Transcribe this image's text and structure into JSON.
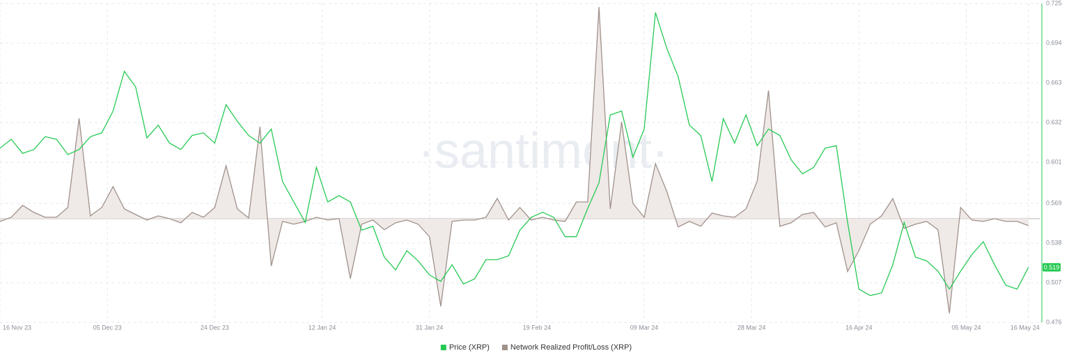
{
  "chart_data": {
    "type": "line",
    "watermark": "·santiment·",
    "x": [
      "2023-11-16",
      "2023-11-18",
      "2023-11-20",
      "2023-11-22",
      "2023-11-24",
      "2023-11-26",
      "2023-11-28",
      "2023-11-30",
      "2023-12-02",
      "2023-12-04",
      "2023-12-06",
      "2023-12-08",
      "2023-12-10",
      "2023-12-12",
      "2023-12-14",
      "2023-12-16",
      "2023-12-18",
      "2023-12-20",
      "2023-12-22",
      "2023-12-24",
      "2023-12-26",
      "2023-12-28",
      "2023-12-30",
      "2024-01-01",
      "2024-01-03",
      "2024-01-05",
      "2024-01-07",
      "2024-01-09",
      "2024-01-11",
      "2024-01-13",
      "2024-01-15",
      "2024-01-17",
      "2024-01-19",
      "2024-01-21",
      "2024-01-23",
      "2024-01-25",
      "2024-01-27",
      "2024-01-29",
      "2024-01-31",
      "2024-02-02",
      "2024-02-04",
      "2024-02-06",
      "2024-02-08",
      "2024-02-10",
      "2024-02-12",
      "2024-02-14",
      "2024-02-16",
      "2024-02-18",
      "2024-02-20",
      "2024-02-22",
      "2024-02-24",
      "2024-02-26",
      "2024-02-28",
      "2024-03-01",
      "2024-03-03",
      "2024-03-05",
      "2024-03-07",
      "2024-03-09",
      "2024-03-11",
      "2024-03-13",
      "2024-03-15",
      "2024-03-17",
      "2024-03-19",
      "2024-03-21",
      "2024-03-23",
      "2024-03-25",
      "2024-03-27",
      "2024-03-29",
      "2024-03-31",
      "2024-04-02",
      "2024-04-04",
      "2024-04-06",
      "2024-04-08",
      "2024-04-10",
      "2024-04-12",
      "2024-04-14",
      "2024-04-16",
      "2024-04-18",
      "2024-04-20",
      "2024-04-22",
      "2024-04-24",
      "2024-04-26",
      "2024-04-28",
      "2024-04-30",
      "2024-05-02",
      "2024-05-04",
      "2024-05-06",
      "2024-05-08",
      "2024-05-10",
      "2024-05-12",
      "2024-05-14",
      "2024-05-16"
    ],
    "xlim": [
      "2023-11-16",
      "2024-05-18"
    ],
    "xticks": [
      {
        "value": "2023-11-16",
        "label": "16 Nov 23"
      },
      {
        "value": "2023-12-05",
        "label": "05 Dec 23"
      },
      {
        "value": "2023-12-24",
        "label": "24 Dec 23"
      },
      {
        "value": "2024-01-12",
        "label": "12 Jan 24"
      },
      {
        "value": "2024-01-31",
        "label": "31 Jan 24"
      },
      {
        "value": "2024-02-19",
        "label": "19 Feb 24"
      },
      {
        "value": "2024-03-09",
        "label": "09 Mar 24"
      },
      {
        "value": "2024-03-28",
        "label": "28 Mar 24"
      },
      {
        "value": "2024-04-16",
        "label": "16 Apr 24"
      },
      {
        "value": "2024-05-05",
        "label": "05 May 24"
      },
      {
        "value": "2024-05-16",
        "label": "16 May 24"
      }
    ],
    "ylim": [
      0.476,
      0.725
    ],
    "yticks": [
      0.476,
      0.507,
      0.538,
      0.569,
      0.601,
      0.632,
      0.663,
      0.694,
      0.725
    ],
    "y2lim": [
      -149,
      309
    ],
    "grid": true,
    "legend": "bottom",
    "series": [
      {
        "name": "Price (XRP)",
        "color": "#26c953",
        "current_value": 0.519,
        "values": [
          0.612,
          0.619,
          0.608,
          0.611,
          0.621,
          0.619,
          0.607,
          0.611,
          0.621,
          0.624,
          0.641,
          0.672,
          0.66,
          0.62,
          0.63,
          0.616,
          0.611,
          0.622,
          0.624,
          0.616,
          0.646,
          0.633,
          0.622,
          0.616,
          0.627,
          0.586,
          0.57,
          0.554,
          0.597,
          0.57,
          0.575,
          0.57,
          0.548,
          0.551,
          0.527,
          0.517,
          0.532,
          0.524,
          0.513,
          0.508,
          0.521,
          0.506,
          0.51,
          0.525,
          0.525,
          0.528,
          0.548,
          0.558,
          0.562,
          0.558,
          0.543,
          0.543,
          0.565,
          0.585,
          0.638,
          0.641,
          0.605,
          0.627,
          0.718,
          0.69,
          0.668,
          0.63,
          0.622,
          0.586,
          0.635,
          0.616,
          0.638,
          0.614,
          0.627,
          0.622,
          0.603,
          0.592,
          0.597,
          0.612,
          0.614,
          0.554,
          0.502,
          0.497,
          0.499,
          0.521,
          0.554,
          0.527,
          0.524,
          0.516,
          0.502,
          0.516,
          0.529,
          0.539,
          0.521,
          0.505,
          0.502,
          0.519
        ]
      },
      {
        "name": "Network Realized Profit/Loss (XRP)",
        "color": "#a0918b",
        "fill": "#efe9e7",
        "axis": "y2",
        "values": [
          -4,
          2,
          19,
          9,
          2,
          2,
          16,
          144,
          4,
          16,
          46,
          14,
          6,
          -2,
          4,
          0,
          -6,
          9,
          2,
          16,
          76,
          14,
          1,
          132,
          -68,
          -4,
          -8,
          -4,
          2,
          -2,
          0,
          -86,
          -8,
          -2,
          -16,
          -6,
          -2,
          -8,
          -26,
          -126,
          -4,
          -2,
          -2,
          2,
          29,
          -2,
          16,
          -2,
          2,
          -2,
          -4,
          24,
          24,
          304,
          14,
          139,
          22,
          2,
          79,
          39,
          -12,
          -4,
          -11,
          8,
          4,
          2,
          14,
          54,
          184,
          -11,
          -6,
          6,
          9,
          -12,
          -6,
          -76,
          -46,
          -8,
          4,
          29,
          -14,
          -8,
          -4,
          -16,
          -136,
          16,
          -2,
          -4,
          0,
          -4,
          -4,
          -10
        ]
      }
    ]
  }
}
